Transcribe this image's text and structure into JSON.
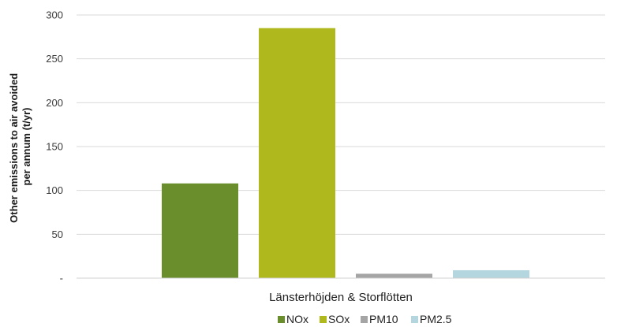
{
  "chart_data": {
    "type": "bar",
    "categories": [
      "Länsterhöjden & Storflötten"
    ],
    "series": [
      {
        "name": "NOx",
        "values": [
          108
        ],
        "color": "#6a8e2b"
      },
      {
        "name": "SOx",
        "values": [
          285
        ],
        "color": "#afb81c"
      },
      {
        "name": "PM10",
        "values": [
          5
        ],
        "color": "#a5a5a5"
      },
      {
        "name": "PM2.5",
        "values": [
          9
        ],
        "color": "#b3d6df"
      }
    ],
    "ylabel_lines": [
      "Other emissions to air avoided",
      "per annum (t/yr)"
    ],
    "yticks": [
      "-",
      "50",
      "100",
      "150",
      "200",
      "250",
      "300"
    ],
    "ylim": [
      0,
      300
    ],
    "grid": true,
    "legend": "bottom"
  }
}
